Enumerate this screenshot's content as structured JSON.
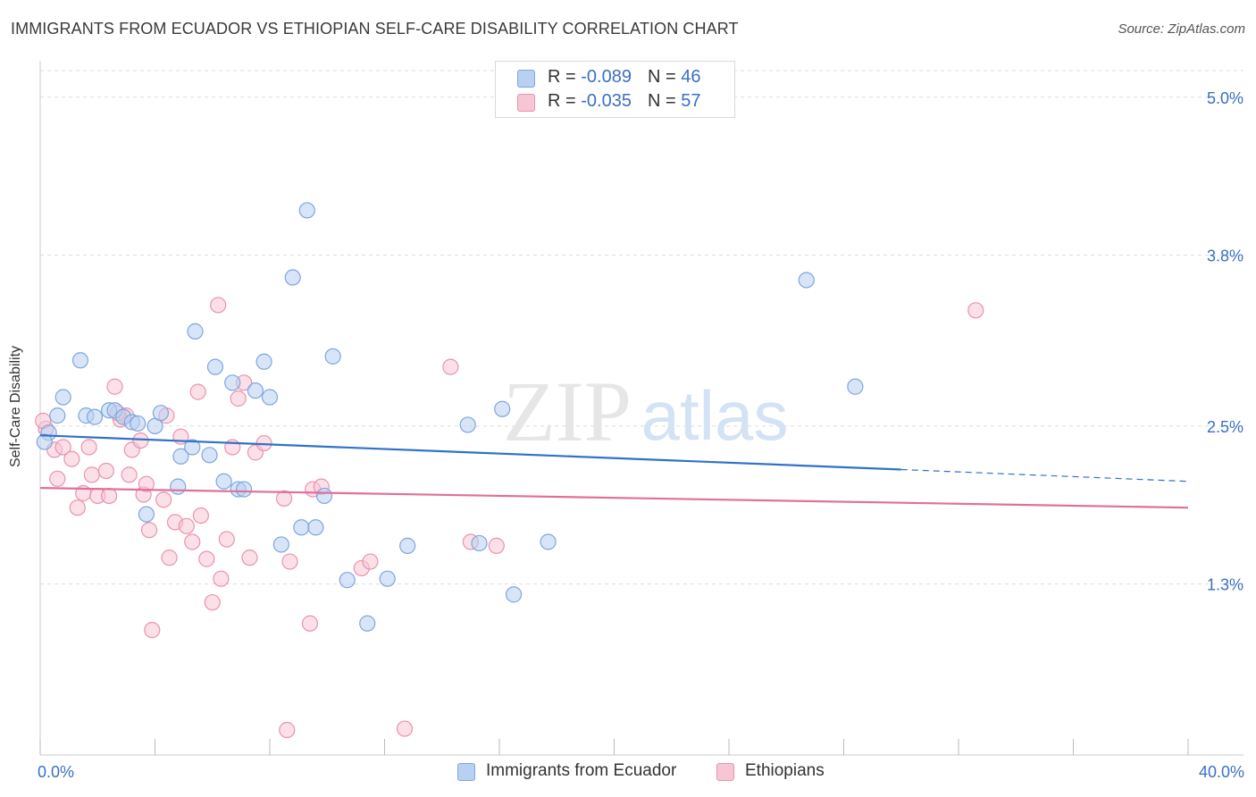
{
  "title": "IMMIGRANTS FROM ECUADOR VS ETHIOPIAN SELF-CARE DISABILITY CORRELATION CHART",
  "source": "Source: ZipAtlas.com",
  "watermark": {
    "zip": "ZIP",
    "atlas": "atlas"
  },
  "colors": {
    "blue_fill": "#b8d0f2",
    "blue_stroke": "#7fa6dc",
    "blue_line": "#2f72c9",
    "pink_fill": "#f7c6d5",
    "pink_stroke": "#e993ae",
    "pink_line": "#e0709a",
    "tick_label": "#3a6fc4",
    "grid": "#dddddd"
  },
  "legend": {
    "rows": [
      {
        "r_label": "R = ",
        "r_value": "-0.089",
        "n_label": "N = ",
        "n_value": "46",
        "color": "#b8d0f2",
        "stroke": "#7fa6dc"
      },
      {
        "r_label": "R = ",
        "r_value": "-0.035",
        "n_label": "N = ",
        "n_value": "57",
        "color": "#f7c6d5",
        "stroke": "#e993ae"
      }
    ]
  },
  "chart_data": {
    "type": "scatter",
    "title": "IMMIGRANTS FROM ECUADOR VS ETHIOPIAN SELF-CARE DISABILITY CORRELATION CHART",
    "xlabel": "",
    "ylabel": "Self-Care Disability",
    "xlim": [
      0,
      40
    ],
    "ylim": [
      0,
      5.25
    ],
    "x_tick_labels": [
      "0.0%",
      "40.0%"
    ],
    "y_ticks": [
      1.3,
      2.5,
      3.8,
      5.0
    ],
    "y_tick_labels": [
      "1.3%",
      "2.5%",
      "3.8%",
      "5.0%"
    ],
    "grid": "horizontal dashed",
    "legend_position": "bottom",
    "series": [
      {
        "name": "Immigrants from Ecuador",
        "trend": {
          "x0": 0,
          "y0": 2.43,
          "x1": 30,
          "y1": 2.17,
          "dash_x1": 40,
          "dash_y1": 2.08
        },
        "points": [
          [
            0.3,
            2.45
          ],
          [
            0.6,
            2.58
          ],
          [
            0.8,
            2.72
          ],
          [
            1.4,
            3.0
          ],
          [
            1.6,
            2.58
          ],
          [
            1.9,
            2.57
          ],
          [
            2.4,
            2.62
          ],
          [
            2.6,
            2.62
          ],
          [
            2.9,
            2.57
          ],
          [
            3.2,
            2.53
          ],
          [
            3.4,
            2.52
          ],
          [
            3.7,
            1.83
          ],
          [
            4.0,
            2.5
          ],
          [
            4.2,
            2.6
          ],
          [
            4.8,
            2.04
          ],
          [
            4.9,
            2.27
          ],
          [
            5.3,
            2.34
          ],
          [
            5.4,
            3.22
          ],
          [
            5.9,
            2.28
          ],
          [
            6.1,
            2.95
          ],
          [
            6.4,
            2.08
          ],
          [
            6.7,
            2.83
          ],
          [
            6.9,
            2.02
          ],
          [
            7.1,
            2.02
          ],
          [
            7.5,
            2.77
          ],
          [
            7.8,
            2.99
          ],
          [
            8.0,
            2.72
          ],
          [
            8.4,
            1.6
          ],
          [
            8.8,
            3.63
          ],
          [
            9.1,
            1.73
          ],
          [
            9.3,
            4.14
          ],
          [
            9.6,
            1.73
          ],
          [
            9.9,
            1.97
          ],
          [
            10.2,
            3.03
          ],
          [
            10.7,
            1.33
          ],
          [
            11.4,
            1.0
          ],
          [
            12.1,
            1.34
          ],
          [
            12.8,
            1.59
          ],
          [
            14.9,
            2.51
          ],
          [
            15.3,
            1.61
          ],
          [
            16.1,
            2.63
          ],
          [
            16.5,
            1.22
          ],
          [
            17.7,
            1.62
          ],
          [
            26.7,
            3.61
          ],
          [
            28.4,
            2.8
          ],
          [
            0.15,
            2.38
          ]
        ]
      },
      {
        "name": "Ethiopians",
        "trend": {
          "x0": 0,
          "y0": 2.03,
          "x1": 40,
          "y1": 1.88
        },
        "points": [
          [
            0.2,
            2.48
          ],
          [
            0.5,
            2.32
          ],
          [
            0.6,
            2.1
          ],
          [
            0.8,
            2.34
          ],
          [
            1.1,
            2.25
          ],
          [
            1.3,
            1.88
          ],
          [
            1.5,
            1.99
          ],
          [
            1.7,
            2.34
          ],
          [
            1.8,
            2.13
          ],
          [
            2.0,
            1.97
          ],
          [
            2.3,
            2.16
          ],
          [
            2.4,
            1.97
          ],
          [
            2.6,
            2.8
          ],
          [
            2.8,
            2.55
          ],
          [
            3.0,
            2.58
          ],
          [
            3.1,
            2.13
          ],
          [
            3.2,
            2.32
          ],
          [
            3.5,
            2.39
          ],
          [
            3.6,
            1.98
          ],
          [
            3.7,
            2.06
          ],
          [
            3.8,
            1.71
          ],
          [
            3.9,
            0.95
          ],
          [
            4.3,
            1.94
          ],
          [
            4.4,
            2.58
          ],
          [
            4.5,
            1.5
          ],
          [
            4.7,
            1.77
          ],
          [
            4.9,
            2.42
          ],
          [
            5.1,
            1.74
          ],
          [
            5.3,
            1.62
          ],
          [
            5.5,
            2.76
          ],
          [
            5.6,
            1.82
          ],
          [
            5.8,
            1.49
          ],
          [
            6.0,
            1.16
          ],
          [
            6.2,
            3.42
          ],
          [
            6.3,
            1.34
          ],
          [
            6.5,
            1.64
          ],
          [
            6.7,
            2.34
          ],
          [
            6.9,
            2.71
          ],
          [
            7.1,
            2.83
          ],
          [
            7.3,
            1.5
          ],
          [
            7.5,
            2.3
          ],
          [
            7.8,
            2.37
          ],
          [
            8.5,
            1.95
          ],
          [
            8.7,
            1.47
          ],
          [
            9.4,
            1.0
          ],
          [
            9.5,
            2.02
          ],
          [
            9.8,
            2.04
          ],
          [
            11.2,
            1.42
          ],
          [
            11.5,
            1.47
          ],
          [
            12.7,
            0.2
          ],
          [
            14.3,
            2.95
          ],
          [
            15.0,
            1.62
          ],
          [
            15.9,
            1.59
          ],
          [
            32.6,
            3.38
          ],
          [
            0.1,
            2.54
          ],
          [
            8.6,
            0.19
          ],
          [
            2.7,
            2.6
          ]
        ]
      }
    ]
  }
}
